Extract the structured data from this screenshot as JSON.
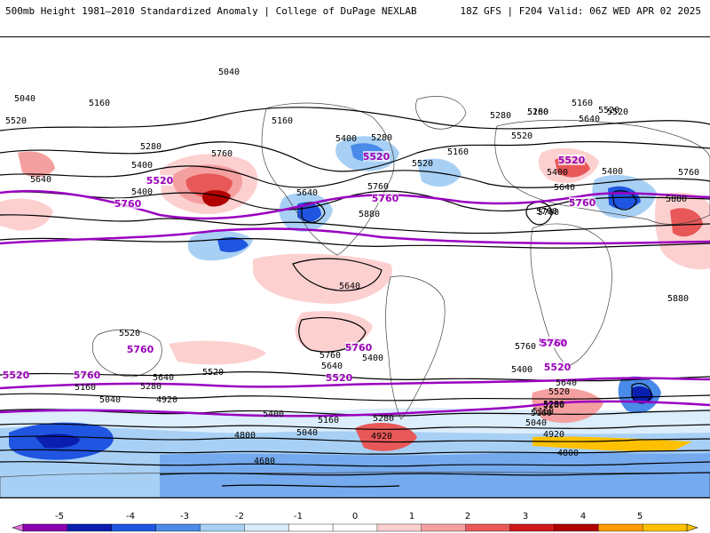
{
  "header": {
    "title_left": "500mb Height 1981–2010 Standardized Anomaly | College of DuPage NEXLAB",
    "title_right": "18Z GFS | F204 Valid: 06Z WED APR 02 2025"
  },
  "colors": {
    "contour": "#000000",
    "highlight_contour": "#9a00c0",
    "land": "#ffffff",
    "coast": "#444444"
  },
  "contour_labels": [
    {
      "text": "5040"
    },
    {
      "text": "5040"
    },
    {
      "text": "5160"
    },
    {
      "text": "5520"
    },
    {
      "text": "5520"
    },
    {
      "text": "5280"
    },
    {
      "text": "5760"
    },
    {
      "text": "5400"
    },
    {
      "text": "5160"
    },
    {
      "text": "5400"
    },
    {
      "text": "5280"
    },
    {
      "text": "5160"
    },
    {
      "text": "5520"
    },
    {
      "text": "5640"
    },
    {
      "text": "5760"
    },
    {
      "text": "5880"
    },
    {
      "text": "5400"
    },
    {
      "text": "5280"
    },
    {
      "text": "5160"
    },
    {
      "text": "5640"
    },
    {
      "text": "5520"
    },
    {
      "text": "5640"
    },
    {
      "text": "5400"
    },
    {
      "text": "5760"
    },
    {
      "text": "5880"
    },
    {
      "text": "5880"
    },
    {
      "text": "5760"
    },
    {
      "text": "5640"
    },
    {
      "text": "5520"
    },
    {
      "text": "5760"
    },
    {
      "text": "5640"
    },
    {
      "text": "5400"
    },
    {
      "text": "5520"
    },
    {
      "text": "5640"
    },
    {
      "text": "5280"
    },
    {
      "text": "5160"
    },
    {
      "text": "5040"
    },
    {
      "text": "4920"
    },
    {
      "text": "5280"
    },
    {
      "text": "5160"
    },
    {
      "text": "5040"
    },
    {
      "text": "4920"
    },
    {
      "text": "4800"
    },
    {
      "text": "4680"
    },
    {
      "text": "5400"
    },
    {
      "text": "5280"
    },
    {
      "text": "5160"
    },
    {
      "text": "4800"
    },
    {
      "text": "4920"
    },
    {
      "text": "5040"
    },
    {
      "text": "5160"
    },
    {
      "text": "5280"
    },
    {
      "text": "5520"
    },
    {
      "text": "5640"
    },
    {
      "text": "5760"
    },
    {
      "text": "5400"
    },
    {
      "text": "5400"
    },
    {
      "text": "5520"
    },
    {
      "text": "5640"
    },
    {
      "text": "5760"
    },
    {
      "text": "5160"
    },
    {
      "text": "5280"
    }
  ],
  "highlight_labels": [
    {
      "text": "5520"
    },
    {
      "text": "5760"
    },
    {
      "text": "5520"
    },
    {
      "text": "5760"
    },
    {
      "text": "5520"
    },
    {
      "text": "5760"
    },
    {
      "text": "5520"
    },
    {
      "text": "5760"
    },
    {
      "text": "5760"
    },
    {
      "text": "5520"
    },
    {
      "text": "5520"
    },
    {
      "text": "5760"
    },
    {
      "text": "5520"
    },
    {
      "text": "5760"
    }
  ],
  "legend": {
    "ticks": [
      "-5",
      "-4",
      "-3",
      "-2",
      "-1",
      "0",
      "1",
      "2",
      "3",
      "4",
      "5"
    ],
    "colors": [
      "#8a00b0",
      "#0a1fb0",
      "#1f55e0",
      "#4a8ae8",
      "#a8d0f5",
      "#d8ecfc",
      "#ffffff",
      "#ffffff",
      "#fdd0d0",
      "#f5a0a0",
      "#e85858",
      "#d01818",
      "#b00000",
      "#ff9a00",
      "#ffc000"
    ]
  }
}
